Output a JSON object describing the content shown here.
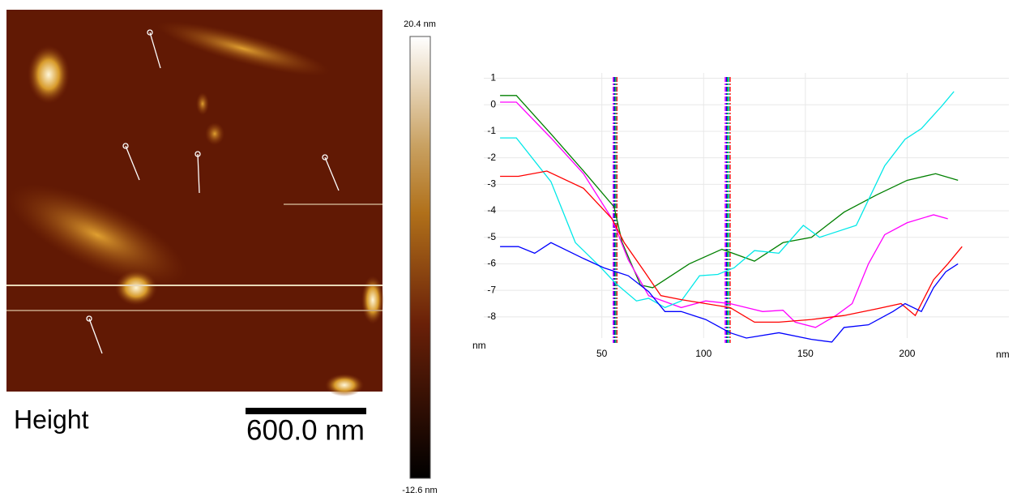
{
  "image": {
    "label": "Height",
    "scale_bar": "600.0 nm",
    "colorbar_max": "20.4 nm",
    "colorbar_min": "-12.6 nm"
  },
  "chart_data": {
    "type": "line",
    "xlabel": "nm",
    "ylabel": "nm",
    "xlim": [
      -8,
      250
    ],
    "ylim": [
      -8.8,
      1.2
    ],
    "xticks": [
      50,
      100,
      150,
      200
    ],
    "yticks": [
      1,
      0,
      -1,
      -2,
      -3,
      -4,
      -5,
      -6,
      -7,
      -8
    ],
    "grid": true,
    "series": [
      {
        "color": "#008000",
        "x": [
          0,
          8,
          25,
          41,
          56,
          60,
          69,
          75,
          93,
          109,
          125,
          139,
          153,
          169,
          185,
          200,
          214,
          225
        ],
        "values": [
          0.35,
          0.35,
          -1.1,
          -2.5,
          -3.85,
          -5.2,
          -6.8,
          -6.9,
          -6.0,
          -5.45,
          -5.9,
          -5.2,
          -5.0,
          -4.05,
          -3.4,
          -2.85,
          -2.6,
          -2.85
        ]
      },
      {
        "color": "#ff00ff",
        "x": [
          0,
          8,
          25,
          41,
          55,
          63,
          73,
          89,
          101,
          113,
          129,
          139,
          145,
          155,
          165,
          173,
          181,
          189,
          200,
          213,
          220
        ],
        "values": [
          0.1,
          0.1,
          -1.25,
          -2.6,
          -4.3,
          -5.85,
          -7.2,
          -7.65,
          -7.4,
          -7.5,
          -7.8,
          -7.75,
          -8.2,
          -8.4,
          -7.95,
          -7.5,
          -6.0,
          -4.9,
          -4.45,
          -4.15,
          -4.3
        ]
      },
      {
        "color": "#00e8e8",
        "x": [
          0,
          8,
          25,
          37,
          49,
          57,
          67,
          73,
          81,
          89,
          98,
          107,
          115,
          125,
          137,
          149,
          157,
          175,
          189,
          199,
          207,
          217,
          223
        ],
        "values": [
          -1.25,
          -1.25,
          -2.9,
          -5.2,
          -6.1,
          -6.75,
          -7.4,
          -7.3,
          -7.65,
          -7.4,
          -6.45,
          -6.4,
          -6.15,
          -5.5,
          -5.6,
          -4.55,
          -5.0,
          -4.55,
          -2.3,
          -1.3,
          -0.9,
          -0.05,
          0.5
        ]
      },
      {
        "color": "#ff0000",
        "x": [
          0,
          9,
          23,
          41,
          55,
          61,
          71,
          79,
          89,
          101,
          113,
          125,
          137,
          153,
          169,
          185,
          197,
          204,
          213,
          220,
          227
        ],
        "values": [
          -2.7,
          -2.7,
          -2.5,
          -3.15,
          -4.3,
          -5.2,
          -6.3,
          -7.2,
          -7.35,
          -7.5,
          -7.65,
          -8.2,
          -8.2,
          -8.1,
          -7.95,
          -7.7,
          -7.5,
          -7.95,
          -6.6,
          -6.0,
          -5.35
        ]
      },
      {
        "color": "#0000ff",
        "x": [
          0,
          9,
          17,
          25,
          41,
          51,
          63,
          73,
          81,
          89,
          101,
          113,
          121,
          137,
          153,
          163,
          169,
          181,
          193,
          199,
          207,
          213,
          219,
          225
        ],
        "values": [
          -5.35,
          -5.35,
          -5.6,
          -5.2,
          -5.8,
          -6.15,
          -6.45,
          -7.05,
          -7.8,
          -7.8,
          -8.1,
          -8.6,
          -8.8,
          -8.6,
          -8.85,
          -8.95,
          -8.4,
          -8.3,
          -7.8,
          -7.5,
          -7.8,
          -6.9,
          -6.3,
          -6.0
        ]
      }
    ],
    "cursors": [
      {
        "color": "#ff00ff",
        "x": 55.6
      },
      {
        "color": "#0000ff",
        "x": 56.1
      },
      {
        "color": "#008000",
        "x": 56.6
      },
      {
        "color": "#00e8e8",
        "x": 57.0
      },
      {
        "color": "#ff0000",
        "x": 57.4
      },
      {
        "color": "#ff00ff",
        "x": 110.6
      },
      {
        "color": "#0000ff",
        "x": 111.2
      },
      {
        "color": "#008000",
        "x": 111.8
      },
      {
        "color": "#00e8e8",
        "x": 112.4
      },
      {
        "color": "#ff0000",
        "x": 113.0
      }
    ]
  }
}
